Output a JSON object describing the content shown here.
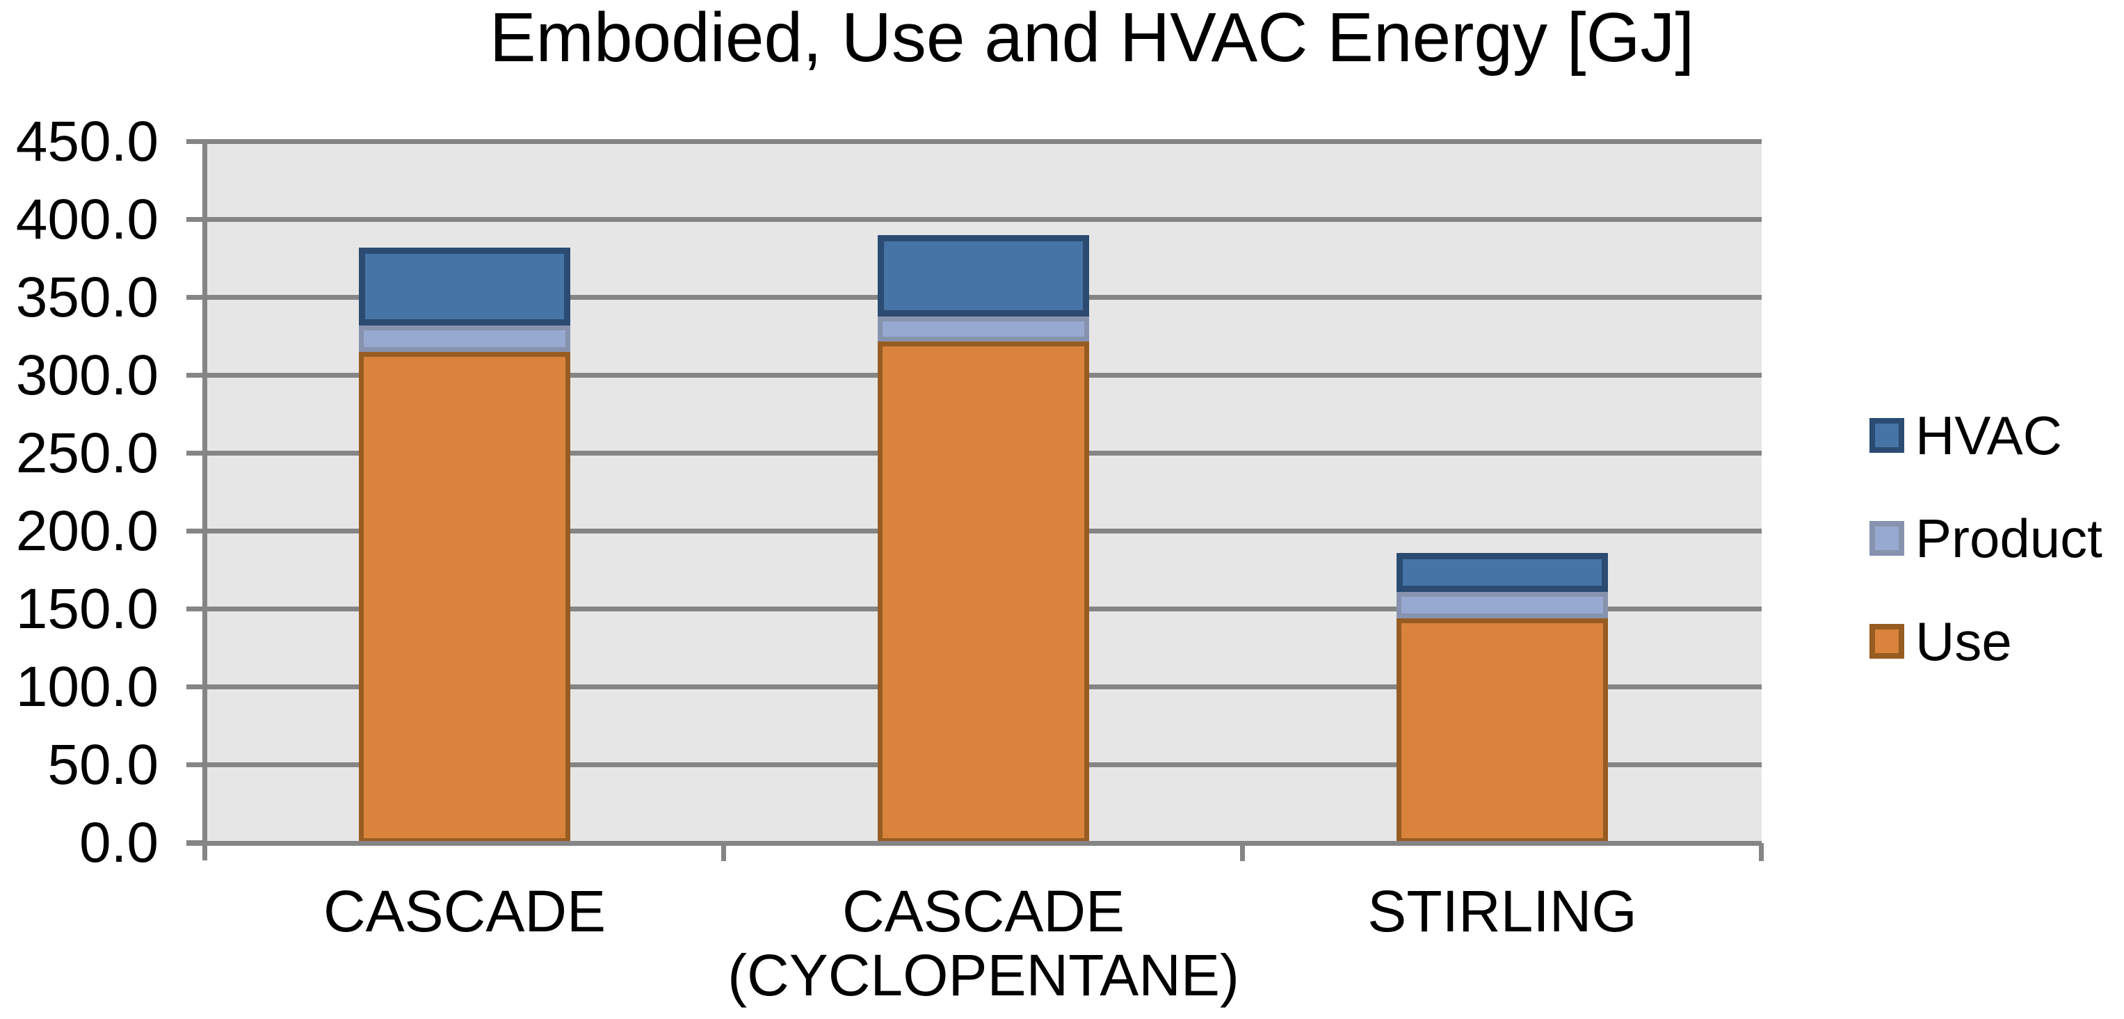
{
  "chart_data": {
    "type": "bar",
    "stacked": true,
    "title": "Embodied, Use and HVAC Energy [GJ]",
    "categories": [
      "CASCADE",
      "CASCADE\n(CYCLOPENTANE)",
      "STIRLING"
    ],
    "series": [
      {
        "name": "Use",
        "values": [
          315,
          322,
          144
        ],
        "fill": "#d9833c",
        "border": "#975c21"
      },
      {
        "name": "Product",
        "values": [
          17,
          16,
          17
        ],
        "fill": "#97a9d0",
        "border": "#8793ae"
      },
      {
        "name": "HVAC",
        "values": [
          50,
          52,
          25
        ],
        "fill": "#4674a6",
        "border": "#2b4b72"
      }
    ],
    "ylim": [
      0,
      450
    ],
    "ytick_step": 50,
    "ytick_labels": [
      "0.0",
      "50.0",
      "100.0",
      "150.0",
      "200.0",
      "250.0",
      "300.0",
      "350.0",
      "400.0",
      "450.0"
    ],
    "xlabel": "",
    "ylabel": "",
    "grid": true,
    "legend": {
      "position": "right",
      "entries": [
        "HVAC",
        "Product",
        "Use"
      ]
    },
    "colors": {
      "plot_background": "#e6e6e6",
      "gridline": "#858585",
      "axis": "#858585",
      "text": "#000000",
      "page_background": "#ffffff"
    }
  }
}
